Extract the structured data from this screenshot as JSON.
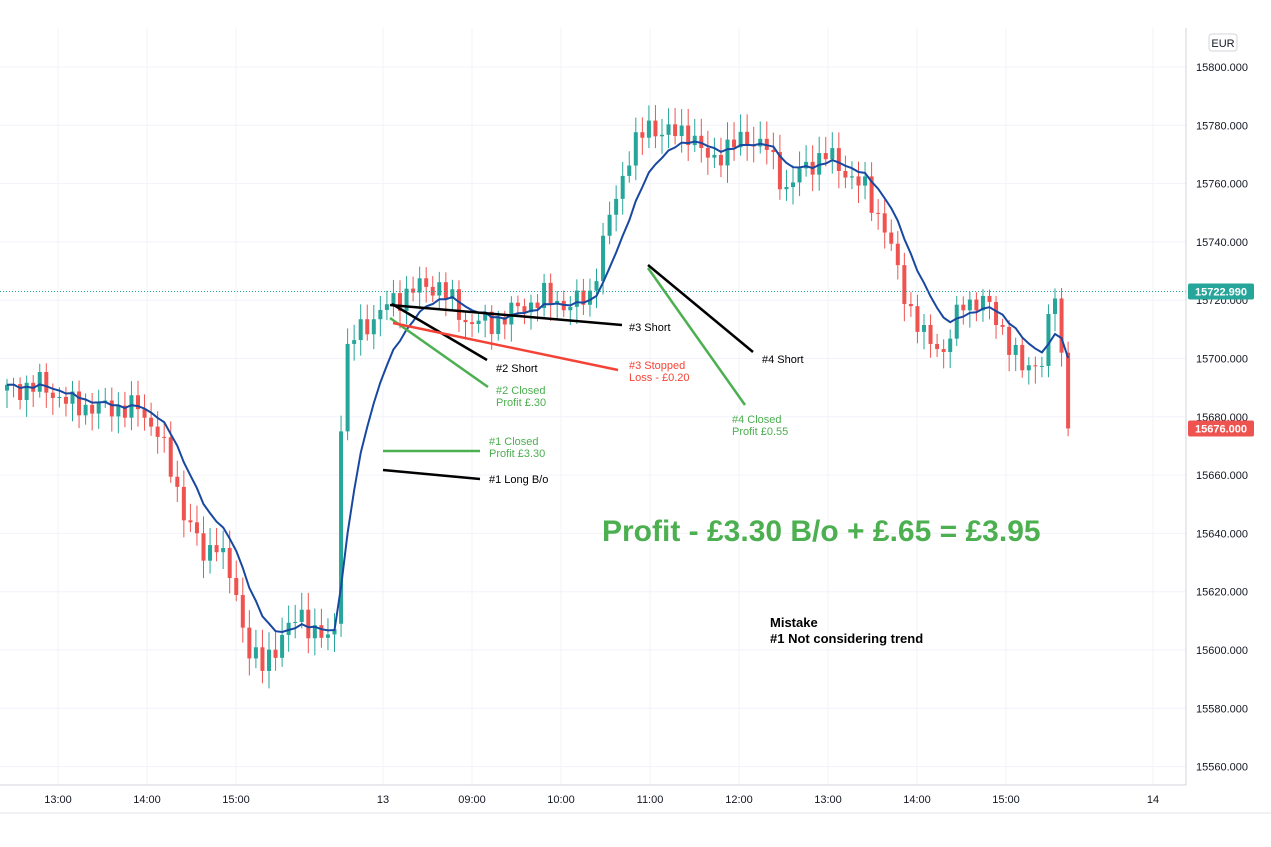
{
  "currency_label": "EUR",
  "colors": {
    "up": "#26a69a",
    "down": "#ef5350",
    "ma": "#1848a0",
    "grid": "#f0f3fa",
    "green_annot": "#4caf50",
    "red_annot": "#f44336",
    "black_annot": "#000000",
    "current_price_bg": "#26a69a",
    "last_price_bg": "#ef5350"
  },
  "price_badges": {
    "current": "15722.990",
    "last": "15676.000"
  },
  "annotations": {
    "trade1_long": "#1 Long B/o",
    "trade1_closed_line1": "#1 Closed",
    "trade1_closed_line2": "Profit £3.30",
    "trade2_short": "#2 Short",
    "trade2_closed_line1": "#2 Closed",
    "trade2_closed_line2": "Profit £.30",
    "trade3_short": "#3 Short",
    "trade3_stopped_line1": "#3 Stopped",
    "trade3_stopped_line2": "Loss - £0.20",
    "trade4_short": "#4 Short",
    "trade4_closed_line1": "#4 Closed",
    "trade4_closed_line2": "Profit £0.55",
    "profit_summary": "Profit - £3.30 B/o + £.65 = £3.95",
    "mistake_title": "Mistake",
    "mistake_item": "#1  Not considering trend"
  },
  "chart_data": {
    "type": "candlestick",
    "y_axis": {
      "range": [
        15555,
        15815
      ],
      "ticks": [
        15560,
        15580,
        15600,
        15620,
        15640,
        15660,
        15680,
        15700,
        15720,
        15740,
        15760,
        15780,
        15800
      ],
      "tick_labels": [
        "15560.000",
        "15580.000",
        "15600.000",
        "15620.000",
        "15640.000",
        "15660.000",
        "15680.000",
        "15700.000",
        "15720.000",
        "15740.000",
        "15760.000",
        "15780.000",
        "15800.000"
      ]
    },
    "x_axis": {
      "tick_labels": [
        "13:00",
        "14:00",
        "15:00",
        "13",
        "09:00",
        "10:00",
        "11:00",
        "12:00",
        "13:00",
        "14:00",
        "15:00",
        "14"
      ]
    },
    "grid": true,
    "moving_average": true,
    "current_price": 15722.99,
    "last_price": 15676.0,
    "anchors": [
      [
        0,
        15689
      ],
      [
        5,
        15691
      ],
      [
        10,
        15684
      ],
      [
        15,
        15683
      ],
      [
        20,
        15683
      ],
      [
        23,
        15675
      ],
      [
        27,
        15648
      ],
      [
        30,
        15632
      ],
      [
        32,
        15638
      ],
      [
        35,
        15618
      ],
      [
        37,
        15600
      ],
      [
        39,
        15594
      ],
      [
        42,
        15605
      ],
      [
        45,
        15612
      ],
      [
        47,
        15606
      ],
      [
        49,
        15603
      ],
      [
        50,
        15608
      ],
      [
        52,
        15705
      ],
      [
        55,
        15712
      ],
      [
        58,
        15718
      ],
      [
        62,
        15724
      ],
      [
        66,
        15725
      ],
      [
        70,
        15713
      ],
      [
        74,
        15712
      ],
      [
        78,
        15717
      ],
      [
        82,
        15721
      ],
      [
        86,
        15718
      ],
      [
        89,
        15722
      ],
      [
        92,
        15748
      ],
      [
        95,
        15770
      ],
      [
        98,
        15780
      ],
      [
        101,
        15777
      ],
      [
        104,
        15778
      ],
      [
        107,
        15768
      ],
      [
        110,
        15772
      ],
      [
        113,
        15776
      ],
      [
        116,
        15772
      ],
      [
        119,
        15758
      ],
      [
        122,
        15766
      ],
      [
        125,
        15770
      ],
      [
        128,
        15764
      ],
      [
        131,
        15758
      ],
      [
        134,
        15745
      ],
      [
        137,
        15722
      ],
      [
        140,
        15707
      ],
      [
        143,
        15703
      ],
      [
        146,
        15719
      ],
      [
        149,
        15720
      ],
      [
        152,
        15710
      ],
      [
        155,
        15696
      ],
      [
        158,
        15700
      ],
      [
        160,
        15722
      ],
      [
        161,
        15700
      ],
      [
        162,
        15676
      ]
    ]
  }
}
